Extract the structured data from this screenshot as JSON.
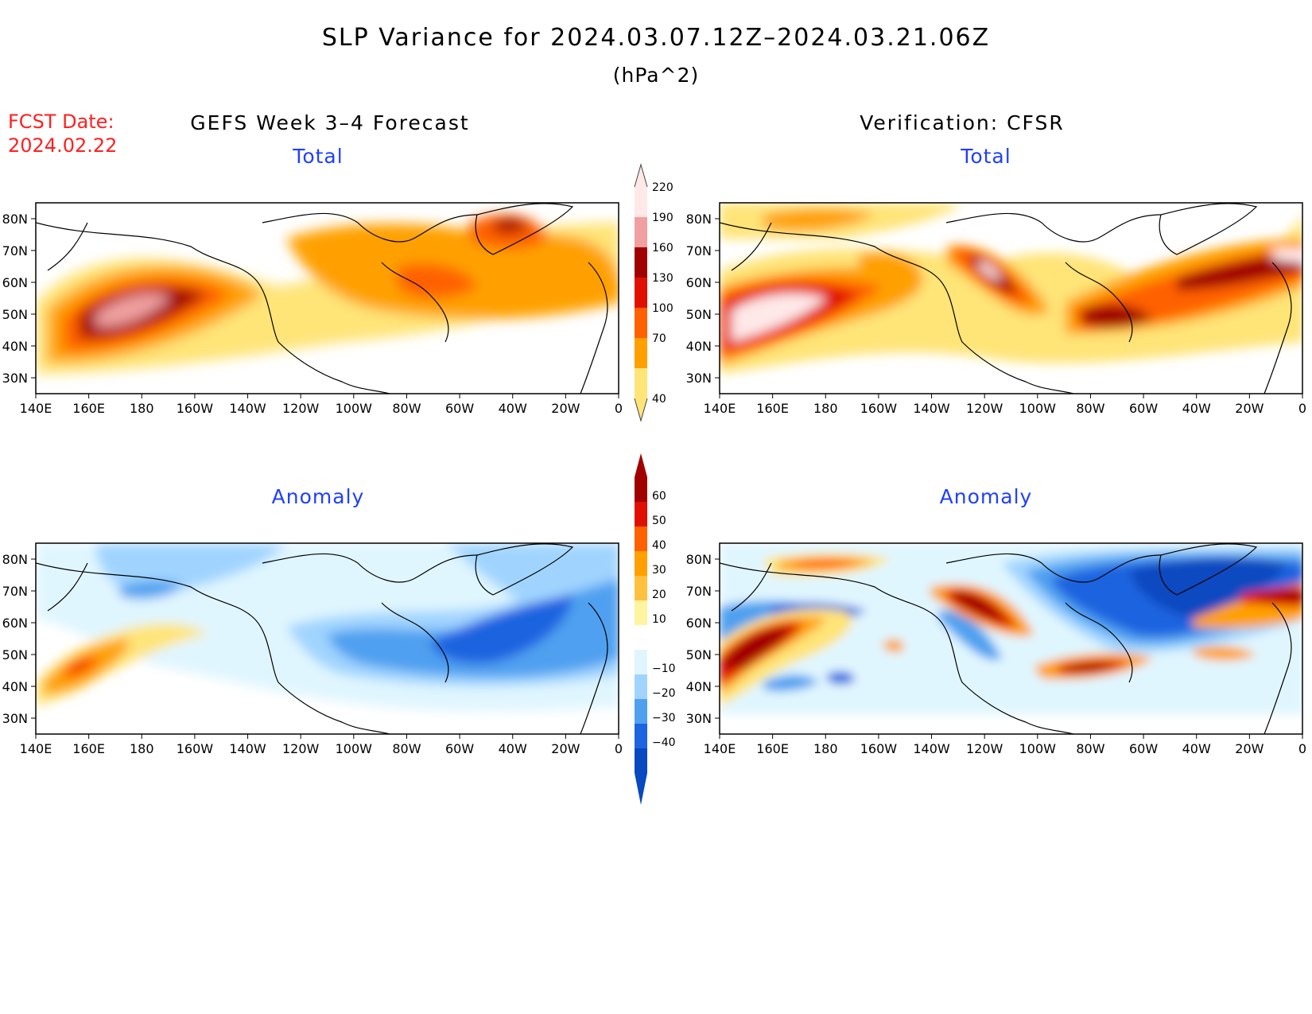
{
  "title": "SLP Variance for 2024.03.07.12Z–2024.03.21.06Z",
  "units": "(hPa^2)",
  "fcst_date_label": "FCST Date:",
  "fcst_date_value": "2024.02.22",
  "left_header": "GEFS Week 3–4 Forecast",
  "right_header": "Verification: CFSR",
  "panels": {
    "forecast_total": {
      "label": "Total"
    },
    "verification_total": {
      "label": "Total"
    },
    "forecast_anomaly": {
      "label": "Anomaly"
    },
    "verification_anomaly": {
      "label": "Anomaly"
    }
  },
  "lat_labels": [
    "80N",
    "70N",
    "60N",
    "50N",
    "40N",
    "30N"
  ],
  "lon_labels": [
    "140E",
    "160E",
    "180",
    "160W",
    "140W",
    "120W",
    "100W",
    "80W",
    "60W",
    "40W",
    "20W",
    "0"
  ],
  "total_colorbar": {
    "levels": [
      "40",
      "70",
      "100",
      "130",
      "160",
      "190",
      "220"
    ],
    "colors": [
      "#ffe478",
      "#ffa000",
      "#ff6000",
      "#e01000",
      "#a00000",
      "#f0a0a0",
      "#ffe8e8"
    ]
  },
  "anomaly_colorbar": {
    "levels": [
      "60",
      "50",
      "40",
      "30",
      "20",
      "10",
      "−10",
      "−20",
      "−30",
      "−40"
    ],
    "colors": [
      "#a00000",
      "#e01000",
      "#ff6000",
      "#ffa000",
      "#ffc040",
      "#fff4a0",
      "#ffffff",
      "#e0f6ff",
      "#a0d4ff",
      "#50a0f0",
      "#1c64e0",
      "#0848c0"
    ]
  }
}
